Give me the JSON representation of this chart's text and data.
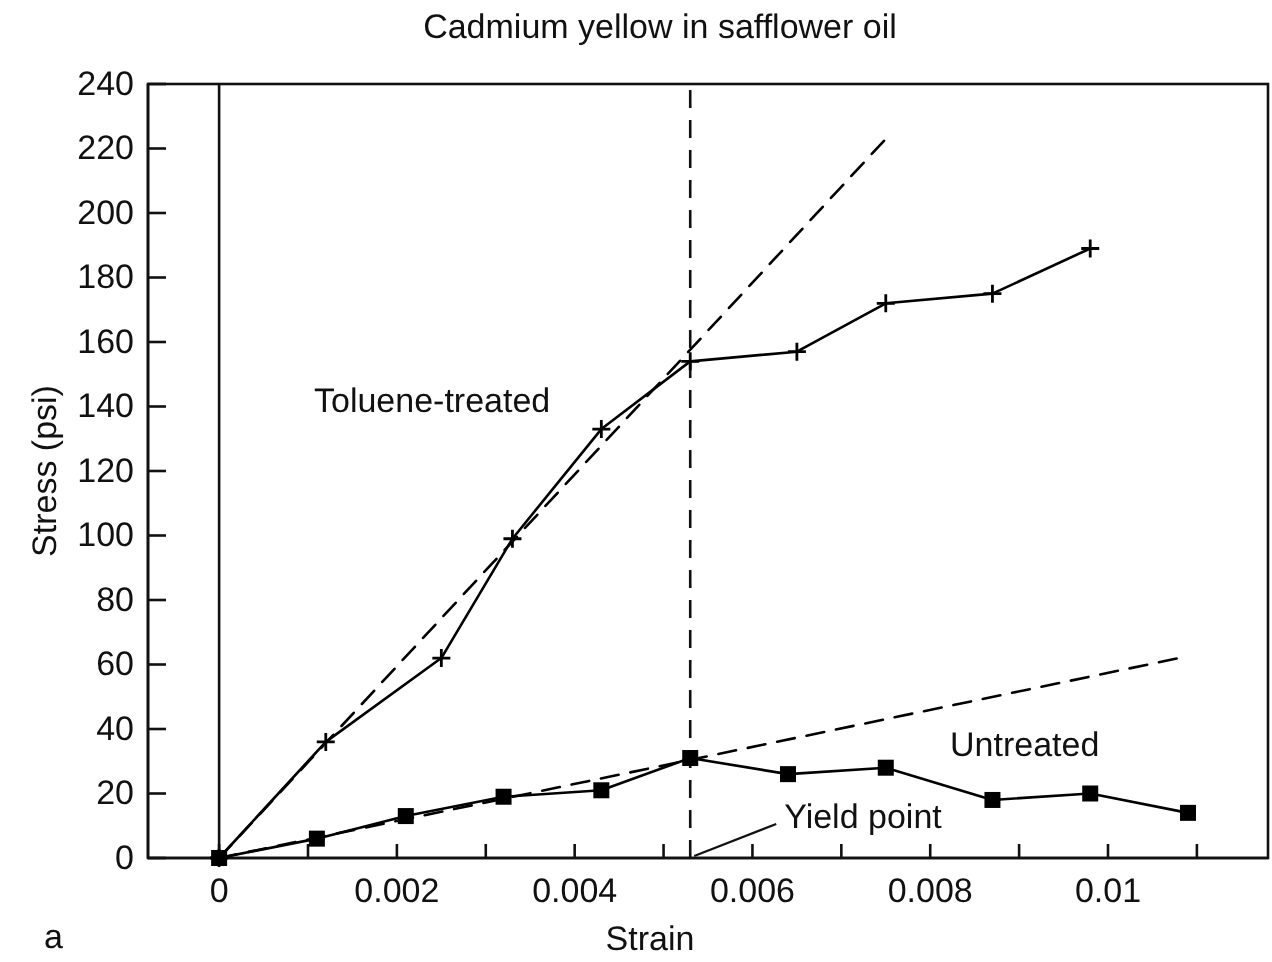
{
  "chart_data": {
    "type": "line",
    "title": "Cadmium yellow in safflower oil",
    "xlabel": "Strain",
    "ylabel": "Stress (psi)",
    "xlim": [
      -0.0008,
      0.0118
    ],
    "ylim": [
      0,
      240
    ],
    "xticks": [
      0,
      {
        "value": 0.001,
        "label": null
      },
      0.002,
      {
        "value": 0.003,
        "label": null
      },
      0.004,
      {
        "value": 0.005,
        "label": null
      },
      0.006,
      {
        "value": 0.007,
        "label": null
      },
      0.008,
      {
        "value": 0.009,
        "label": null
      },
      0.01,
      {
        "value": 0.011,
        "label": null
      }
    ],
    "yticks": [
      0,
      20,
      40,
      60,
      80,
      100,
      120,
      140,
      160,
      180,
      200,
      220,
      240
    ],
    "series": [
      {
        "name": "Toluene-treated",
        "color": "#000000",
        "marker": "cross",
        "line_style": "solid",
        "x": [
          0,
          0.0012,
          0.0025,
          0.0033,
          0.0043,
          0.0053,
          0.0065,
          0.0075,
          0.0087,
          0.0098
        ],
        "values": [
          0,
          36,
          62,
          99,
          133,
          154,
          157,
          172,
          175,
          189
        ]
      },
      {
        "name": "Untreated",
        "color": "#000000",
        "marker": "square",
        "line_style": "solid",
        "x": [
          0,
          0.0011,
          0.0021,
          0.0032,
          0.0043,
          0.0053,
          0.0064,
          0.0075,
          0.0087,
          0.0098,
          0.0109
        ],
        "values": [
          0,
          6,
          13,
          19,
          21,
          31,
          26,
          28,
          18,
          20,
          14
        ]
      },
      {
        "color": "#000000",
        "marker": "none",
        "line_style": "dashed",
        "x": [
          0,
          0.0075
        ],
        "values": [
          0,
          223
        ]
      },
      {
        "color": "#000000",
        "marker": "none",
        "line_style": "dashed",
        "x": [
          0,
          0.0108
        ],
        "values": [
          0,
          62
        ]
      }
    ],
    "ref_lines": [
      {
        "axis": "x",
        "value": 0,
        "line_style": "solid"
      },
      {
        "axis": "x",
        "value": 0.0053,
        "line_style": "dashed"
      }
    ],
    "annotations": [
      {
        "text": "Yield point",
        "x": 0.0053,
        "y": 0
      },
      "a"
    ]
  }
}
